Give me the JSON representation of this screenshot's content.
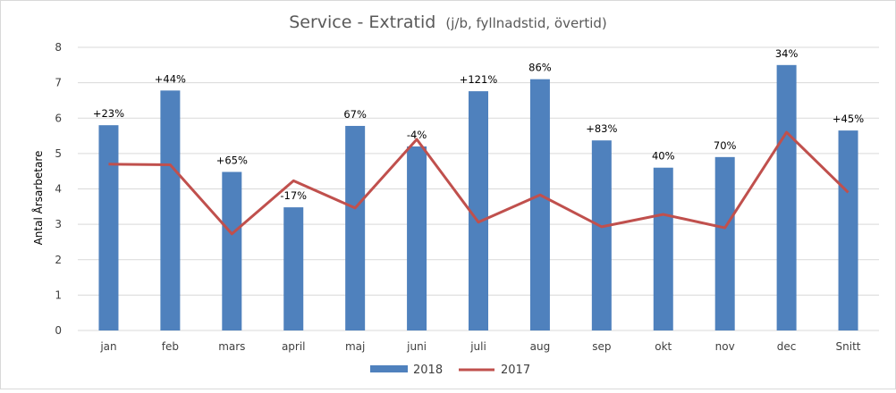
{
  "chart_data": {
    "type": "bar",
    "title": "Service - Extratid",
    "subtitle": "(j/b, fyllnadstid, övertid)",
    "ylabel": "Antal Årsarbetare",
    "xlabel": "",
    "ylim": [
      0,
      8
    ],
    "yticks": [
      0,
      1,
      2,
      3,
      4,
      5,
      6,
      7,
      8
    ],
    "grid": true,
    "legend_position": "bottom",
    "categories": [
      "jan",
      "feb",
      "mars",
      "april",
      "maj",
      "juni",
      "juli",
      "aug",
      "sep",
      "okt",
      "nov",
      "dec",
      "Snitt"
    ],
    "series": [
      {
        "name": "2018",
        "type": "bar",
        "color": "#4f81bd",
        "values": [
          5.8,
          6.78,
          4.48,
          3.48,
          5.78,
          5.2,
          6.76,
          7.1,
          5.37,
          4.6,
          4.9,
          7.5,
          5.65
        ],
        "data_labels": [
          "+23%",
          "+44%",
          "+65%",
          "-17%",
          "67%",
          "-4%",
          "+121%",
          "86%",
          "+83%",
          "40%",
          "70%",
          "34%",
          "+45%"
        ]
      },
      {
        "name": "2017",
        "type": "line",
        "color": "#c0504d",
        "values": [
          4.7,
          4.68,
          2.73,
          4.23,
          3.46,
          5.4,
          3.06,
          3.83,
          2.93,
          3.28,
          2.9,
          5.6,
          3.9
        ]
      }
    ]
  }
}
